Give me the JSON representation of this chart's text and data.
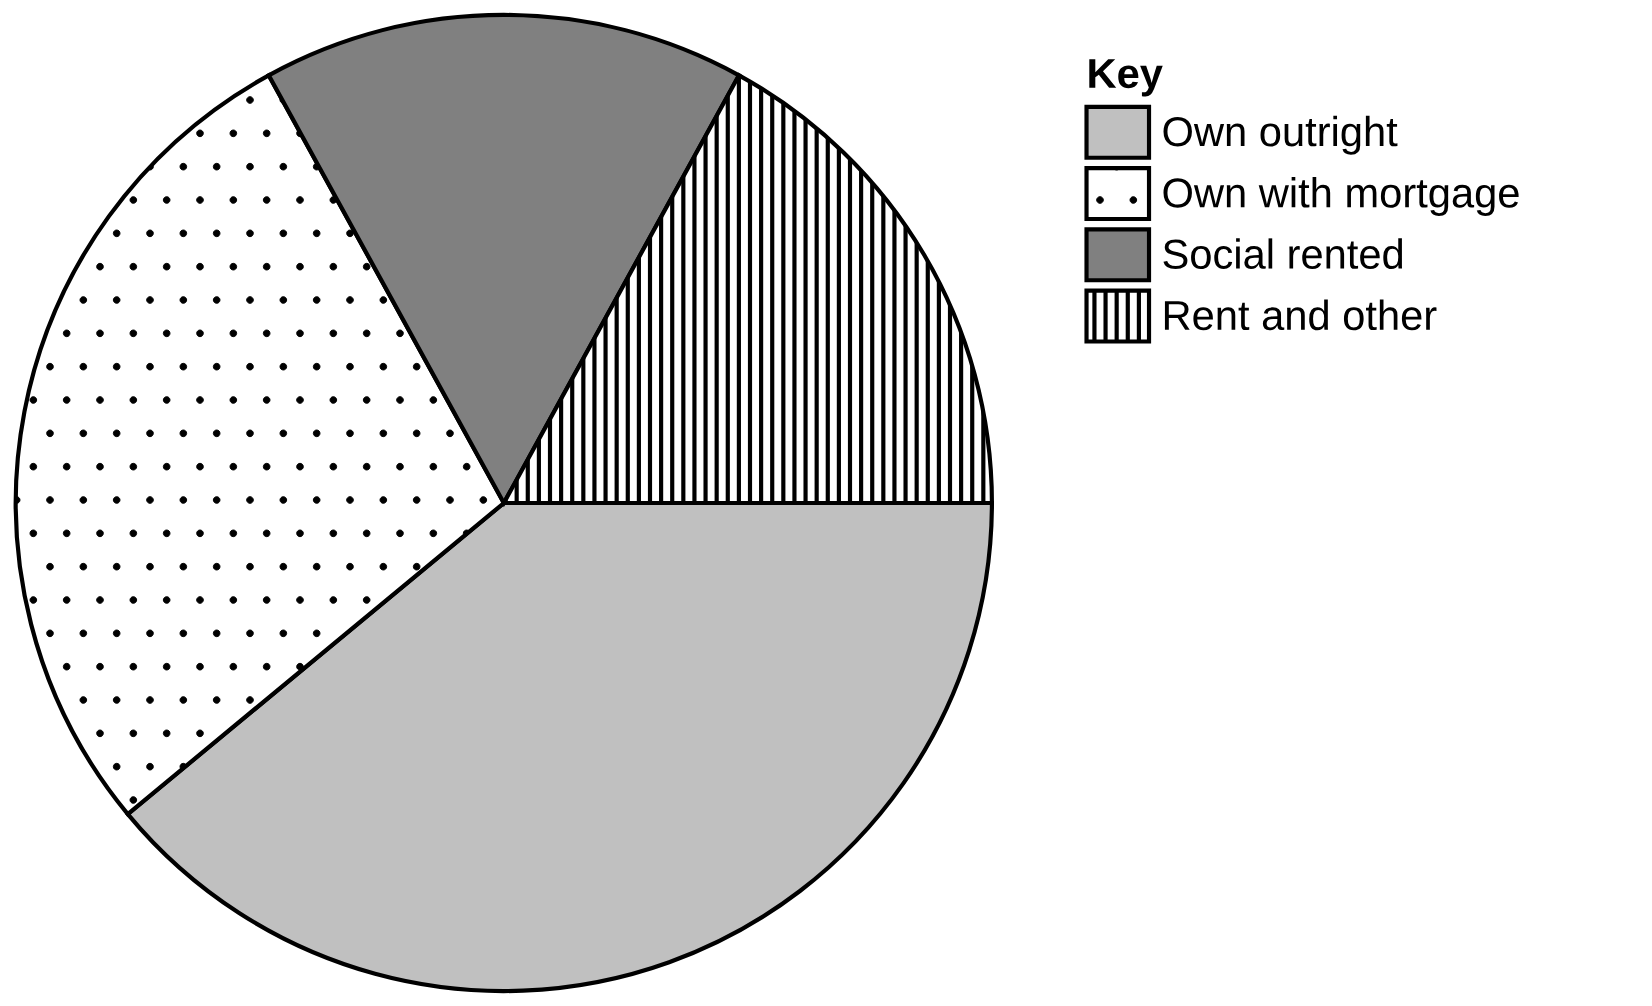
{
  "chart_data": {
    "type": "pie",
    "legend_title": "Key",
    "categories": [
      "Own outright",
      "Own with mortgage",
      "Social rented",
      "Rent and other"
    ],
    "values": [
      39,
      28,
      16,
      17
    ],
    "colors": [
      "#c0c0c0",
      "#ffffff",
      "#808080",
      "#ffffff"
    ],
    "legend": "top right"
  }
}
